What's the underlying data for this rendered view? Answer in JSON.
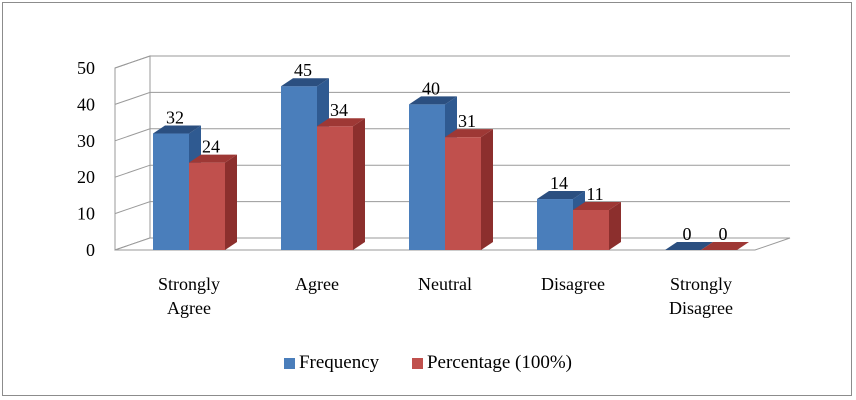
{
  "chart_data": {
    "type": "bar",
    "categories": [
      "Strongly Agree",
      "Agree",
      "Neutral",
      "Disagree",
      "Strongly Disagree"
    ],
    "category_lines": [
      [
        "Strongly",
        "Agree"
      ],
      [
        "Agree"
      ],
      [
        "Neutral"
      ],
      [
        "Disagree"
      ],
      [
        "Strongly",
        "Disagree"
      ]
    ],
    "series": [
      {
        "name": "Frequency",
        "values": [
          32,
          45,
          40,
          14,
          0
        ],
        "color": "#4a7ebb",
        "side": "#2f5a91",
        "top": "#2b4f80"
      },
      {
        "name": "Percentage (100%)",
        "values": [
          24,
          34,
          31,
          11,
          0
        ],
        "color": "#c0504d",
        "side": "#8c2f2d",
        "top": "#9e3835"
      }
    ],
    "ylim": [
      0,
      50
    ],
    "yticks": [
      0,
      10,
      20,
      30,
      40,
      50
    ],
    "grid": true,
    "legend": "bottom",
    "three_d": true
  }
}
